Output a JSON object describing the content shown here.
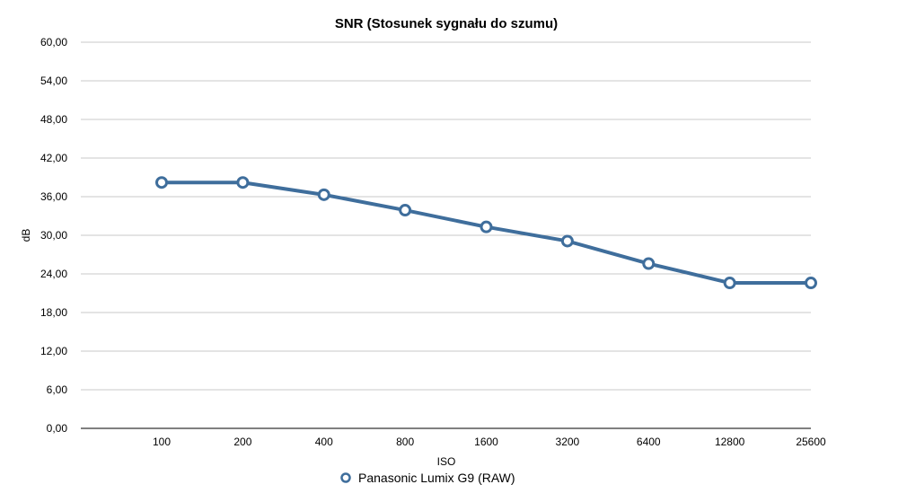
{
  "chart_data": {
    "type": "line",
    "title": "SNR (Stosunek sygnału do szumu)",
    "xlabel": "ISO",
    "ylabel": "dB",
    "categories": [
      "100",
      "200",
      "400",
      "800",
      "1600",
      "3200",
      "6400",
      "12800",
      "25600"
    ],
    "series": [
      {
        "name": "Panasonic Lumix G9 (RAW)",
        "values": [
          38.2,
          38.2,
          36.3,
          33.9,
          31.3,
          29.1,
          25.6,
          22.6,
          22.6
        ],
        "color": "#3f6e9c"
      }
    ],
    "ylim": [
      0,
      60
    ],
    "yticks": [
      "0,00",
      "6,00",
      "12,00",
      "18,00",
      "24,00",
      "30,00",
      "36,00",
      "42,00",
      "48,00",
      "54,00",
      "60,00"
    ],
    "grid": true,
    "legend": "bottom-center"
  }
}
